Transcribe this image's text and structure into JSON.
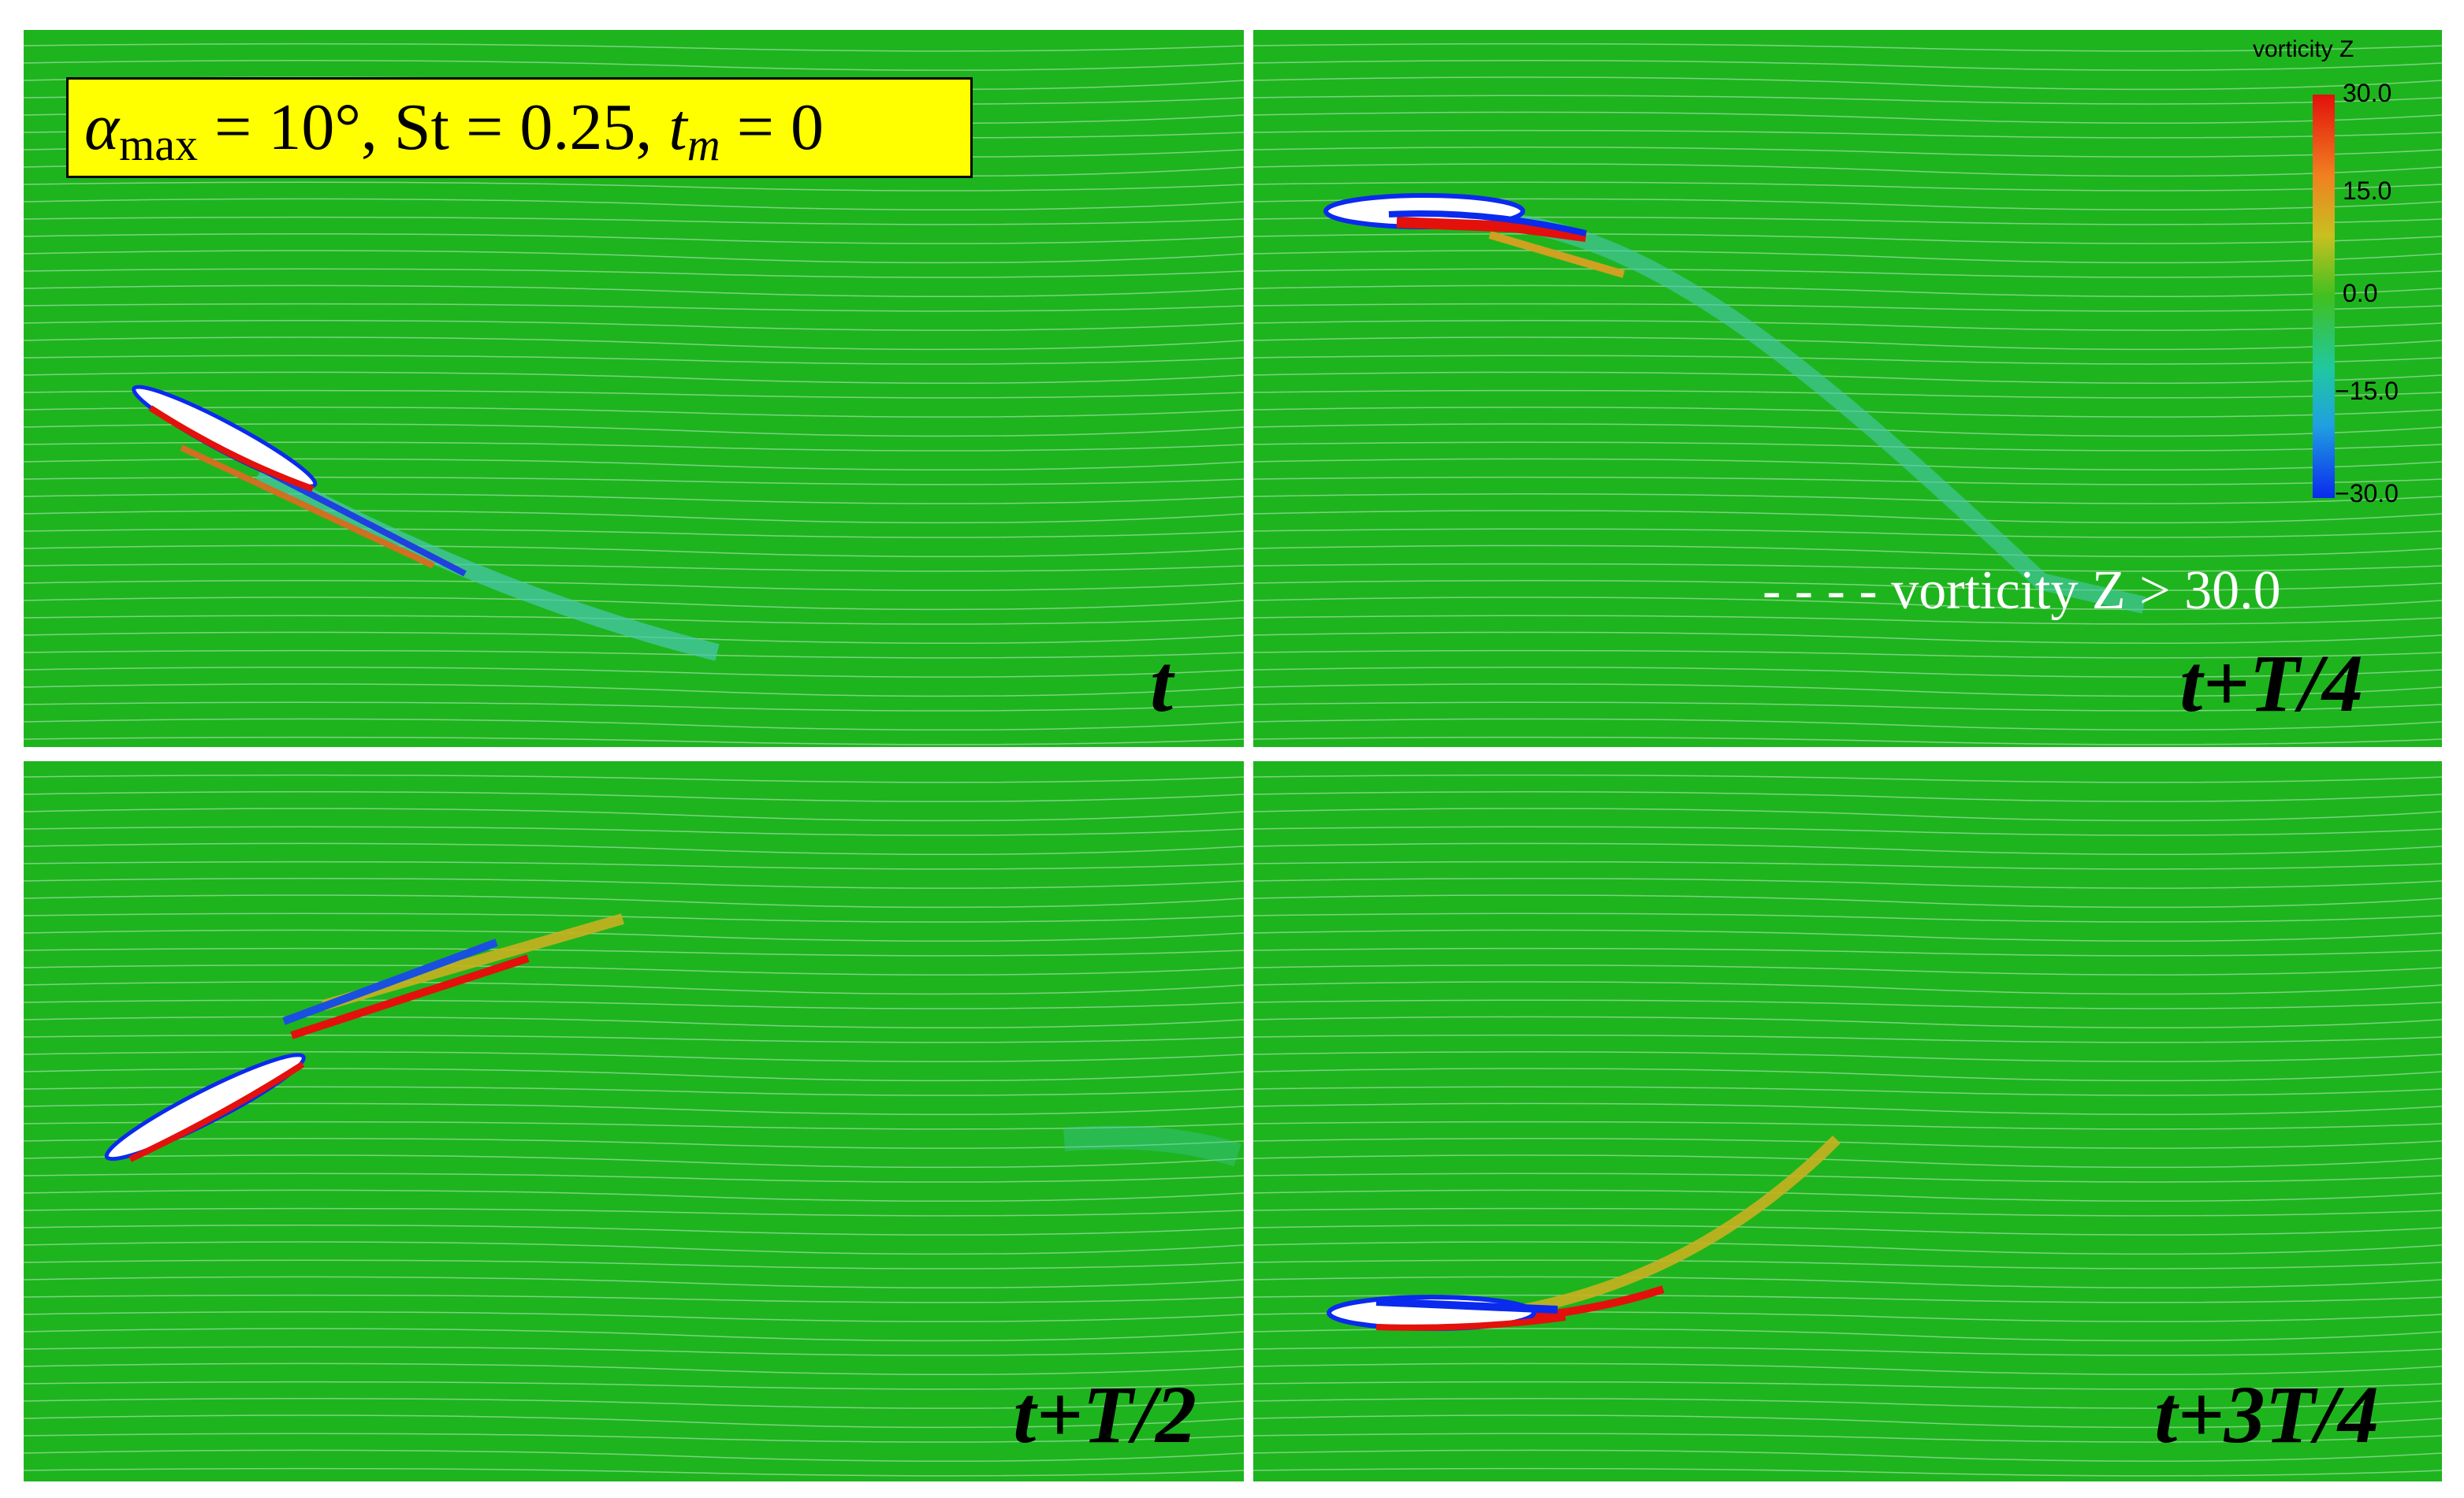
{
  "params": {
    "alpha_symbol": "α",
    "alpha_sub": "max",
    "alpha_rest": " = 10°, St = 0.25, ",
    "t_symbol": "t",
    "t_sub": "m",
    "t_rest": " = 0"
  },
  "panels": [
    {
      "id": "top-left",
      "label": "t"
    },
    {
      "id": "top-right",
      "label": "t+T/4"
    },
    {
      "id": "bottom-left",
      "label": "t+T/2"
    },
    {
      "id": "bottom-right",
      "label": "t+3T/4"
    }
  ],
  "colorbar": {
    "title": "vorticity Z",
    "ticks": [
      "30.0",
      "15.0",
      "0.0",
      "−15.0",
      "−30.0"
    ]
  },
  "threshold_note": "- - - - vorticity Z > 30.0",
  "colors": {
    "background": "#1eb41e",
    "positive_vorticity": "#e4100c",
    "negative_vorticity": "#0a2aee",
    "param_box": "#ffff00"
  }
}
